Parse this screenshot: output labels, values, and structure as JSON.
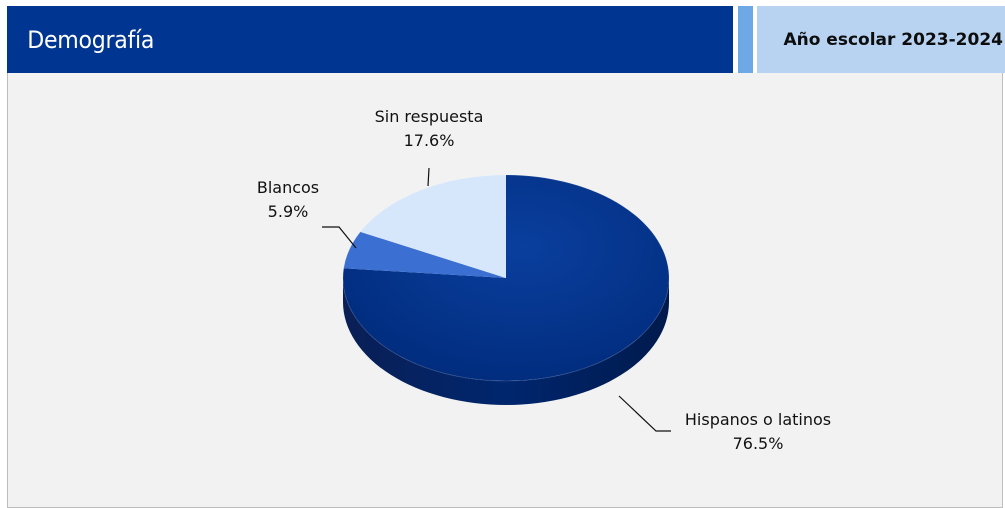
{
  "header": {
    "title": "Demografía",
    "school_year": "Año escolar 2023-2024"
  },
  "colors": {
    "header_dark": "#003591",
    "header_strip": "#6fa8e6",
    "header_light": "#b8d3f2",
    "panel_bg": "#f2f2f2"
  },
  "chart_data": {
    "type": "pie",
    "title": "",
    "categories": [
      "Hispanos o latinos",
      "Blancos",
      "Sin respuesta"
    ],
    "values": [
      76.5,
      5.9,
      17.6
    ],
    "labels": [
      "76.5%",
      "5.9%",
      "17.6%"
    ],
    "colors": [
      "#00318c",
      "#3b6fd1",
      "#d6e6fb"
    ],
    "style": "3d-tilted"
  }
}
